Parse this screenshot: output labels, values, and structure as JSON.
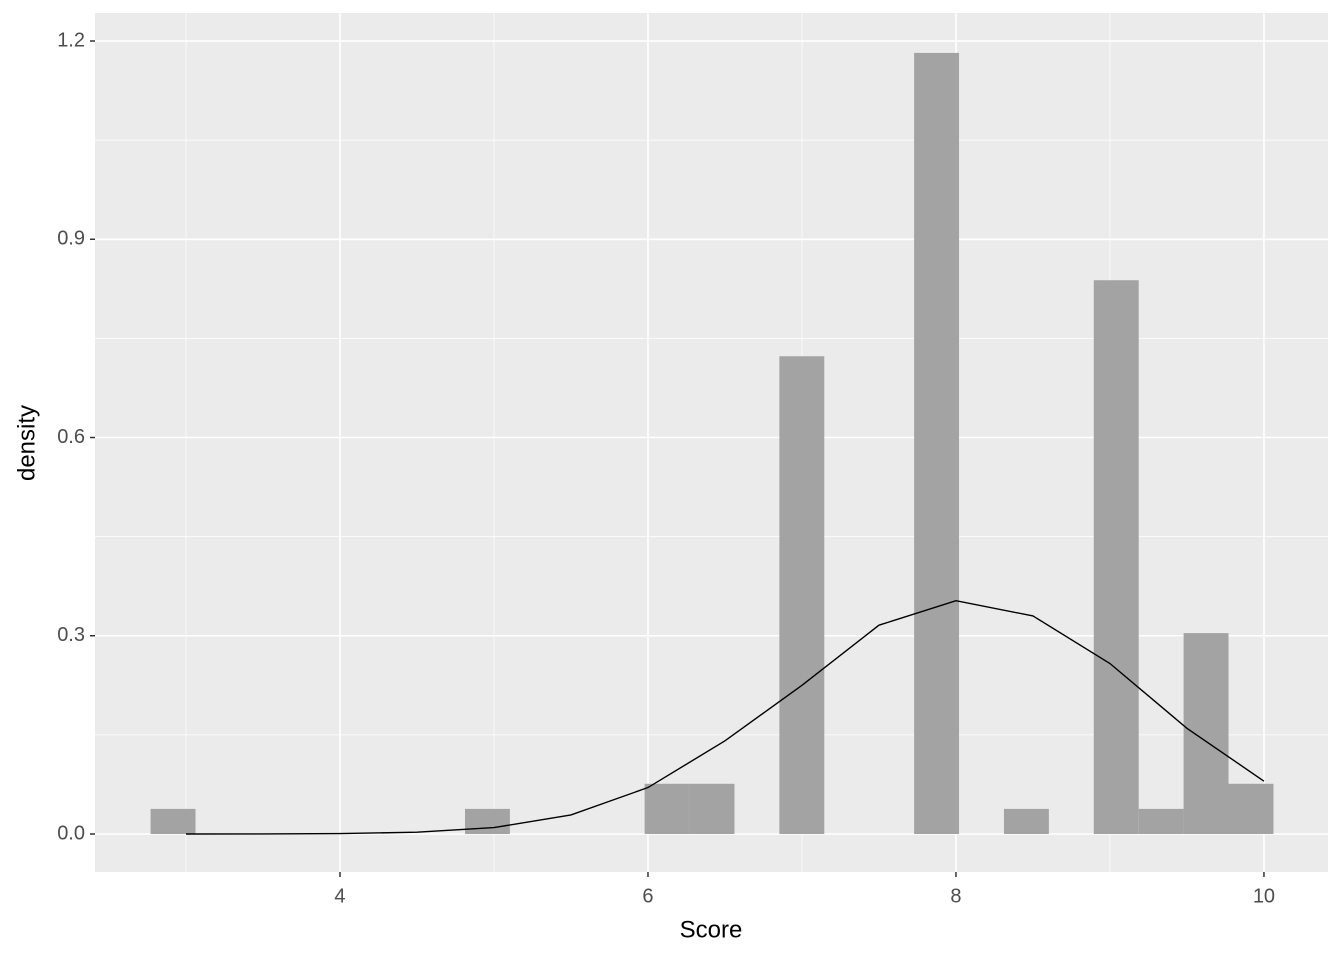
{
  "chart_data": {
    "type": "histogram",
    "x_label": "Score",
    "y_label": "density",
    "bins": [
      2.77,
      3.0617,
      3.3533,
      3.645,
      3.9367,
      4.2283,
      4.52,
      4.8117,
      5.1033,
      5.395,
      5.6867,
      5.9783,
      6.27,
      6.5617,
      6.8533,
      7.145,
      7.4367,
      7.7283,
      8.02,
      8.3117,
      8.6033,
      8.895,
      9.1867,
      9.4783,
      9.77,
      10.0617
    ],
    "values": [
      0.038,
      0,
      0,
      0,
      0,
      0,
      0,
      0.038,
      0,
      0,
      0,
      0.076,
      0.076,
      0,
      0.723,
      0,
      0,
      1.182,
      0,
      0.038,
      0,
      0.838,
      0.038,
      0.304,
      0.076
    ],
    "color": "#a3a3a3",
    "density": {
      "x": [
        3,
        3.5,
        4,
        4.5,
        5,
        5.5,
        6,
        6.5,
        7,
        7.5,
        8,
        8.5,
        9,
        9.5,
        10
      ],
      "values": [
        0.0,
        0.0001,
        0.0006,
        0.0027,
        0.0097,
        0.0288,
        0.0703,
        0.141,
        0.225,
        0.316,
        0.353,
        0.33,
        0.258,
        0.16,
        0.08
      ],
      "color": "#000000"
    },
    "xlim": [
      2.409,
      10.416
    ],
    "ylim": [
      -0.0575,
      1.2424
    ],
    "xticks": [
      4,
      6,
      8,
      10
    ],
    "yticks": [
      {
        "value": 0,
        "label": "0.0"
      },
      0.3,
      0.6,
      0.9,
      1.2
    ],
    "x_minor_ticks": [
      3,
      5,
      7,
      9
    ],
    "y_minor_ticks": [
      0.15,
      0.45,
      0.75,
      1.05
    ],
    "grid": true,
    "panel_color": "#ebebeb"
  }
}
